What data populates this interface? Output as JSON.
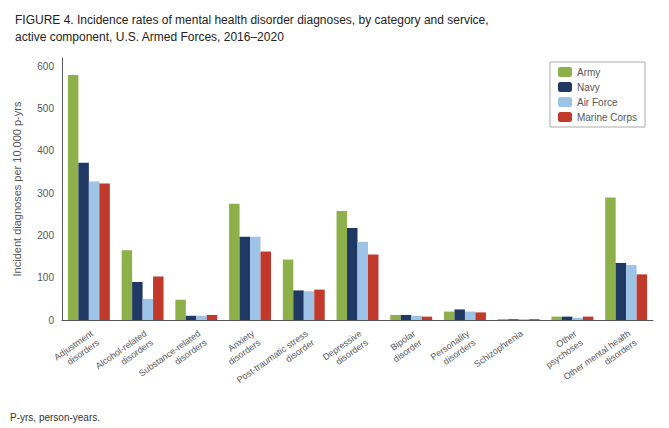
{
  "chart_data": {
    "type": "bar",
    "title": "FIGURE 4. Incidence rates of mental health disorder diagnoses, by category and service,\nactive component, U.S. Armed Forces, 2016–2020",
    "ylabel": "Incident diagnoses per 10,000 p-yrs",
    "annotations": [
      "P-yrs, person-years."
    ],
    "categories": [
      "Adjustment\ndisorders",
      "Alcohol-related\ndisorders",
      "Substance-related\ndisorders",
      "Anxiety\ndisorders",
      "Post-traumatic stress\ndisorder",
      "Depressive\ndisorders",
      "Bipolar\ndisorder",
      "Personality\ndisorders",
      "Schizophrenia",
      "Other\npsychoses",
      "Other mental health\ndisorders"
    ],
    "series": [
      {
        "name": "Army",
        "color": "#8db04a",
        "values": [
          580,
          165,
          48,
          275,
          143,
          258,
          12,
          20,
          2,
          8,
          290
        ]
      },
      {
        "name": "Navy",
        "color": "#1f3864",
        "values": [
          372,
          90,
          10,
          197,
          70,
          218,
          12,
          25,
          2,
          8,
          135
        ]
      },
      {
        "name": "Air Force",
        "color": "#9dc3e6",
        "values": [
          328,
          50,
          10,
          197,
          68,
          185,
          10,
          20,
          2,
          5,
          130
        ]
      },
      {
        "name": "Marine Corps",
        "color": "#c0392b",
        "values": [
          323,
          103,
          12,
          162,
          72,
          155,
          8,
          18,
          2,
          8,
          108
        ]
      }
    ],
    "ylim": [
      0,
      620
    ],
    "yticks": [
      0,
      100,
      200,
      300,
      400,
      500,
      600
    ],
    "grid": false,
    "legend": "upper right"
  }
}
